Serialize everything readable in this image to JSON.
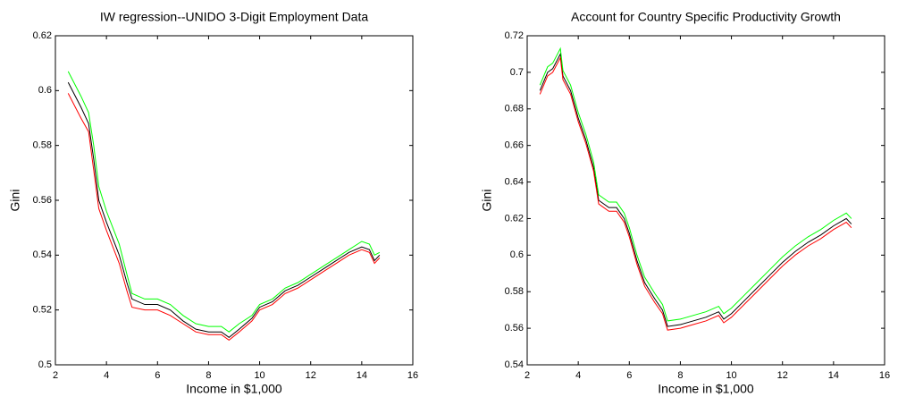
{
  "chart_data": [
    {
      "type": "line",
      "title": "IW regression--UNIDO 3-Digit Employment Data",
      "xlabel": "Income in $1,000",
      "ylabel": "Gini",
      "x": [
        2.5,
        3.0,
        3.3,
        3.5,
        3.7,
        4.0,
        4.5,
        4.8,
        5.0,
        5.5,
        6.0,
        6.5,
        7.0,
        7.5,
        8.0,
        8.5,
        8.8,
        9.2,
        9.7,
        10.0,
        10.5,
        11.0,
        11.5,
        12.0,
        12.5,
        13.0,
        13.5,
        14.0,
        14.3,
        14.5,
        14.7
      ],
      "series": [
        {
          "color": "#000000",
          "values": [
            0.603,
            0.594,
            0.588,
            0.575,
            0.56,
            0.552,
            0.54,
            0.53,
            0.524,
            0.522,
            0.522,
            0.52,
            0.516,
            0.513,
            0.512,
            0.512,
            0.51,
            0.513,
            0.517,
            0.521,
            0.523,
            0.527,
            0.529,
            0.532,
            0.535,
            0.538,
            0.541,
            0.543,
            0.542,
            0.538,
            0.54
          ]
        },
        {
          "color": "#ff0000",
          "values": [
            0.599,
            0.59,
            0.585,
            0.571,
            0.557,
            0.549,
            0.537,
            0.527,
            0.521,
            0.52,
            0.52,
            0.518,
            0.515,
            0.512,
            0.511,
            0.511,
            0.509,
            0.512,
            0.516,
            0.52,
            0.522,
            0.526,
            0.528,
            0.531,
            0.534,
            0.537,
            0.54,
            0.542,
            0.541,
            0.537,
            0.539
          ]
        },
        {
          "color": "#00ff00",
          "values": [
            0.607,
            0.598,
            0.592,
            0.58,
            0.565,
            0.556,
            0.544,
            0.533,
            0.526,
            0.524,
            0.524,
            0.522,
            0.518,
            0.515,
            0.514,
            0.514,
            0.512,
            0.515,
            0.518,
            0.522,
            0.524,
            0.528,
            0.53,
            0.533,
            0.536,
            0.539,
            0.542,
            0.545,
            0.544,
            0.54,
            0.541
          ]
        }
      ],
      "xlim": [
        2,
        16
      ],
      "xticks": [
        2,
        4,
        6,
        8,
        10,
        12,
        14,
        16
      ],
      "ylim": [
        0.5,
        0.62
      ],
      "yticks": [
        0.5,
        0.52,
        0.54,
        0.56,
        0.58,
        0.6,
        0.62
      ]
    },
    {
      "type": "line",
      "title": "Account for Country Specific Productivity Growth",
      "xlabel": "Income in $1,000",
      "ylabel": "Gini",
      "x": [
        2.5,
        2.8,
        3.0,
        3.3,
        3.4,
        3.7,
        4.0,
        4.3,
        4.6,
        4.8,
        5.2,
        5.5,
        5.8,
        6.0,
        6.3,
        6.6,
        7.0,
        7.3,
        7.5,
        8.0,
        8.5,
        9.0,
        9.5,
        9.7,
        10.0,
        10.5,
        11.0,
        11.5,
        12.0,
        12.5,
        13.0,
        13.5,
        14.0,
        14.5,
        14.7
      ],
      "series": [
        {
          "color": "#000000",
          "values": [
            0.69,
            0.7,
            0.702,
            0.71,
            0.698,
            0.69,
            0.675,
            0.663,
            0.648,
            0.63,
            0.626,
            0.626,
            0.62,
            0.612,
            0.597,
            0.585,
            0.576,
            0.57,
            0.561,
            0.562,
            0.564,
            0.566,
            0.569,
            0.565,
            0.568,
            0.575,
            0.582,
            0.589,
            0.596,
            0.602,
            0.607,
            0.611,
            0.616,
            0.62,
            0.617
          ]
        },
        {
          "color": "#ff0000",
          "values": [
            0.688,
            0.698,
            0.7,
            0.708,
            0.696,
            0.688,
            0.673,
            0.661,
            0.646,
            0.628,
            0.624,
            0.624,
            0.618,
            0.61,
            0.595,
            0.583,
            0.574,
            0.568,
            0.559,
            0.56,
            0.562,
            0.564,
            0.567,
            0.563,
            0.566,
            0.573,
            0.58,
            0.587,
            0.594,
            0.6,
            0.605,
            0.609,
            0.614,
            0.618,
            0.615
          ]
        },
        {
          "color": "#00ff00",
          "values": [
            0.693,
            0.703,
            0.705,
            0.713,
            0.701,
            0.693,
            0.678,
            0.666,
            0.651,
            0.633,
            0.629,
            0.629,
            0.623,
            0.615,
            0.6,
            0.588,
            0.579,
            0.573,
            0.564,
            0.565,
            0.567,
            0.569,
            0.572,
            0.568,
            0.571,
            0.578,
            0.585,
            0.592,
            0.599,
            0.605,
            0.61,
            0.614,
            0.619,
            0.623,
            0.62
          ]
        }
      ],
      "xlim": [
        2,
        16
      ],
      "xticks": [
        2,
        4,
        6,
        8,
        10,
        12,
        14,
        16
      ],
      "ylim": [
        0.54,
        0.72
      ],
      "yticks": [
        0.54,
        0.56,
        0.58,
        0.6,
        0.62,
        0.64,
        0.66,
        0.68,
        0.7,
        0.72
      ]
    }
  ]
}
